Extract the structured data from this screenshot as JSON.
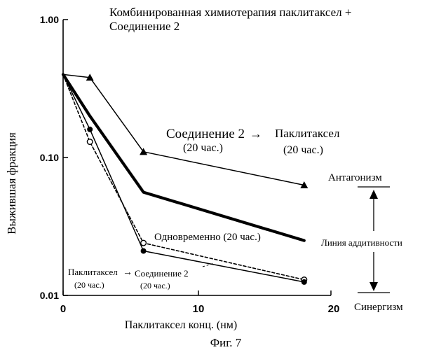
{
  "figure_caption": "Фиг. 7",
  "chart_data": {
    "type": "line",
    "title": "Комбинированная химиотерапия паклитаксел + Соединение 2",
    "title_lines": [
      "Комбинированная химиотерапия паклитаксел +",
      "Соединение 2"
    ],
    "xlabel": "Паклитаксел конц. (нм)",
    "ylabel": "Выжившая фракция",
    "xlim": [
      0,
      20
    ],
    "ylim": [
      0.01,
      1.0
    ],
    "yscale": "log",
    "x_ticks": [
      0,
      10,
      20
    ],
    "x_tick_labels": [
      "0",
      "10",
      "20"
    ],
    "y_ticks": [
      0.01,
      0.1,
      1.0
    ],
    "y_tick_labels": [
      "0.01",
      "0.10",
      "1.00"
    ],
    "grid": false,
    "series": [
      {
        "name": "Соединение 2→ Паклитаксел (20 час.)",
        "marker": "triangle",
        "line_style": "solid",
        "x": [
          0,
          2,
          6,
          18
        ],
        "y": [
          0.4,
          0.38,
          0.11,
          0.063
        ]
      },
      {
        "name": "Линия аддитивности",
        "marker": "none",
        "line_style": "thick",
        "x": [
          0,
          2,
          6,
          18
        ],
        "y": [
          0.4,
          0.2,
          0.056,
          0.025
        ]
      },
      {
        "name": "Одновременно (20 час.)",
        "marker": "open-circle",
        "line_style": "dashed",
        "x": [
          0,
          2,
          6,
          18
        ],
        "y": [
          0.4,
          0.13,
          0.024,
          0.013
        ]
      },
      {
        "name": "Паклитаксел→ Соединение 2 (20 час.)",
        "marker": "filled-circle",
        "line_style": "solid",
        "x": [
          0,
          2,
          6,
          18
        ],
        "y": [
          0.4,
          0.16,
          0.021,
          0.0125
        ]
      }
    ],
    "annotations": {
      "seq1_part_a": "Соединение 2",
      "seq1_arrow": "→",
      "seq1_part_b": "Паклитаксел",
      "seq1_time_a": "(20 час.)",
      "seq1_time_b": "(20 час.)",
      "simultaneous": "Одновременно (20 час.)",
      "seq2_part_a": "Паклитаксел",
      "seq2_arrow": "→",
      "seq2_part_b": "Соединение 2",
      "seq2_time_a": "(20 час.)",
      "seq2_time_b": "(20 час.)",
      "antagonism": "Антагонизм",
      "additivity": "Линия аддитивности",
      "synergism": "Синергизм"
    }
  }
}
